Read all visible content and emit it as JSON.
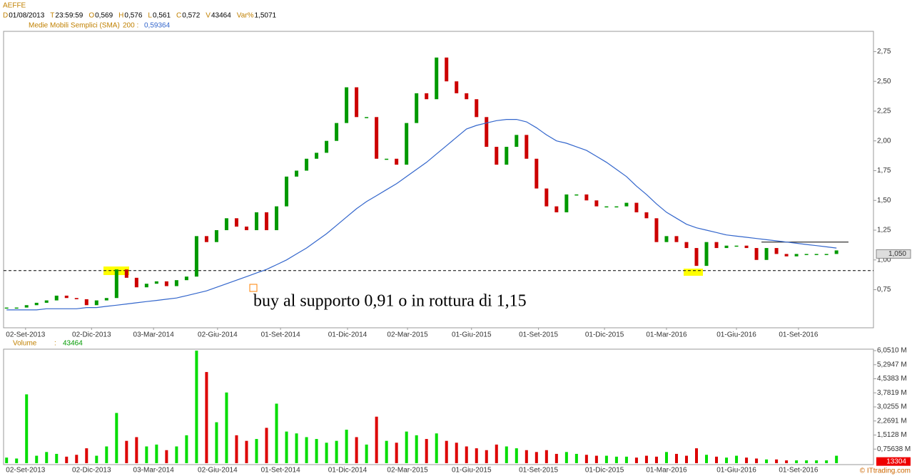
{
  "header": {
    "symbol": "AEFFE",
    "info": [
      {
        "label": "D",
        "value": "01/08/2013"
      },
      {
        "label": "T",
        "value": "23:59:59"
      },
      {
        "label": "O",
        "value": "0,569"
      },
      {
        "label": "H",
        "value": "0,576"
      },
      {
        "label": "L",
        "value": "0,561"
      },
      {
        "label": "C",
        "value": "0,572"
      },
      {
        "label": "V",
        "value": "43464"
      },
      {
        "label": "Var%",
        "value": "1,5071"
      }
    ]
  },
  "chart_data": [
    {
      "type": "candlestick",
      "up_color": "#009900",
      "down_color": "#cc0000",
      "values": [
        0.6,
        0.6,
        0.62,
        0.64,
        0.66,
        0.7,
        0.68,
        0.67,
        0.62,
        0.66,
        0.68,
        0.92,
        0.85,
        0.77,
        0.8,
        0.82,
        0.78,
        0.83,
        0.86,
        1.2,
        1.15,
        1.25,
        1.35,
        1.28,
        1.25,
        1.4,
        1.25,
        1.45,
        1.7,
        1.75,
        1.85,
        1.9,
        2.0,
        2.15,
        2.45,
        2.2,
        2.2,
        1.85,
        1.85,
        1.8,
        2.15,
        2.4,
        2.35,
        2.7,
        2.5,
        2.4,
        2.35,
        2.2,
        1.95,
        1.8,
        1.95,
        2.05,
        1.85,
        1.6,
        1.45,
        1.4,
        1.55,
        1.55,
        1.5,
        1.45,
        1.45,
        1.45,
        1.48,
        1.4,
        1.35,
        1.15,
        1.2,
        1.15,
        1.1,
        0.95,
        1.15,
        1.1,
        1.12,
        1.12,
        1.1,
        1.0,
        1.1,
        1.05,
        1.03,
        1.05,
        1.05,
        1.05,
        1.05,
        1.08
      ],
      "sma": {
        "name": "Medie Mobili Semplici (SMA)",
        "period_label": "200 :",
        "value_label": "0,59364",
        "color": "#3366cc",
        "values": [
          0.58,
          0.58,
          0.58,
          0.58,
          0.59,
          0.59,
          0.59,
          0.59,
          0.6,
          0.6,
          0.61,
          0.62,
          0.63,
          0.64,
          0.65,
          0.66,
          0.67,
          0.68,
          0.7,
          0.72,
          0.74,
          0.77,
          0.8,
          0.83,
          0.86,
          0.89,
          0.92,
          0.96,
          1.0,
          1.05,
          1.1,
          1.16,
          1.22,
          1.29,
          1.36,
          1.43,
          1.49,
          1.54,
          1.59,
          1.64,
          1.7,
          1.76,
          1.82,
          1.89,
          1.96,
          2.03,
          2.1,
          2.13,
          2.15,
          2.17,
          2.18,
          2.18,
          2.16,
          2.11,
          2.05,
          2.0,
          1.98,
          1.95,
          1.92,
          1.87,
          1.82,
          1.76,
          1.7,
          1.62,
          1.55,
          1.47,
          1.4,
          1.35,
          1.3,
          1.27,
          1.25,
          1.23,
          1.21,
          1.2,
          1.19,
          1.18,
          1.17,
          1.16,
          1.15,
          1.14,
          1.13,
          1.12,
          1.11,
          1.1
        ]
      },
      "xlim": [
        -0.3,
        86.7
      ],
      "xticks": [
        {
          "value": 1.9,
          "label": "02-Set-2013"
        },
        {
          "value": 8.5,
          "label": "02-Dic-2013"
        },
        {
          "value": 14.7,
          "label": "03-Mar-2014"
        },
        {
          "value": 21.1,
          "label": "02-Giu-2014"
        },
        {
          "value": 27.4,
          "label": "01-Set-2014"
        },
        {
          "value": 34.1,
          "label": "01-Dic-2014"
        },
        {
          "value": 40.1,
          "label": "02-Mar-2015"
        },
        {
          "value": 46.5,
          "label": "01-Giu-2015"
        },
        {
          "value": 53.2,
          "label": "01-Set-2015"
        },
        {
          "value": 59.8,
          "label": "01-Dic-2015"
        },
        {
          "value": 66.0,
          "label": "01-Mar-2016"
        },
        {
          "value": 73.0,
          "label": "01-Giu-2016"
        },
        {
          "value": 79.2,
          "label": "01-Set-2016"
        }
      ],
      "ylim": [
        0.43,
        2.92
      ],
      "yticks": [
        {
          "value": 0.75,
          "label": "0,75"
        },
        {
          "value": 1.0,
          "label": "1,00"
        },
        {
          "value": 1.25,
          "label": "1,25"
        },
        {
          "value": 1.5,
          "label": "1,50"
        },
        {
          "value": 1.75,
          "label": "1,75"
        },
        {
          "value": 2.0,
          "label": "2,00"
        },
        {
          "value": 2.25,
          "label": "2,25"
        },
        {
          "value": 2.5,
          "label": "2,50"
        },
        {
          "value": 2.75,
          "label": "2,75"
        }
      ],
      "last_price": {
        "value": 1.05,
        "label": "1,050"
      },
      "support": 0.91,
      "resistance": 1.15,
      "annotation": "buy al supporto 0,91 o in rottura di 1,15"
    },
    {
      "type": "bar",
      "label": "Volume",
      "separator": ":",
      "current": "43464",
      "up_color": "#00dd00",
      "down_color": "#dd0000",
      "values": [
        300000,
        250000,
        3700000,
        400000,
        600000,
        500000,
        350000,
        450000,
        800000,
        400000,
        900000,
        2700000,
        1200000,
        1400000,
        900000,
        1000000,
        700000,
        900000,
        1500000,
        6050000,
        4900000,
        2200000,
        3800000,
        1500000,
        1200000,
        1300000,
        1900000,
        3200000,
        1700000,
        1600000,
        1400000,
        1300000,
        1100000,
        1200000,
        1800000,
        1400000,
        1000000,
        2500000,
        1200000,
        1100000,
        1700000,
        1500000,
        1300000,
        1600000,
        1200000,
        1100000,
        900000,
        800000,
        700000,
        1000000,
        900000,
        800000,
        700000,
        600000,
        700000,
        500000,
        600000,
        500000,
        450000,
        400000,
        400000,
        350000,
        350000,
        300000,
        400000,
        350000,
        600000,
        500000,
        400000,
        800000,
        450000,
        350000,
        300000,
        400000,
        300000,
        250000,
        200000,
        200000,
        150000,
        150000,
        150000,
        150000,
        150000,
        400000
      ],
      "ylim": [
        0,
        6130000
      ],
      "yticks": [
        {
          "value": 756380,
          "label": "0,75638 M"
        },
        {
          "value": 1512800,
          "label": "1,5128 M"
        },
        {
          "value": 2269100,
          "label": "2,2691 M"
        },
        {
          "value": 3025500,
          "label": "3,0255 M"
        },
        {
          "value": 3781900,
          "label": "3,7819 M"
        },
        {
          "value": 4538300,
          "label": "4,5383 M"
        },
        {
          "value": 5294700,
          "label": "5,2947 M"
        },
        {
          "value": 6051000,
          "label": "6,0510 M"
        }
      ],
      "last_volume": 13304
    }
  ],
  "watermark": "© ITtrading.com"
}
